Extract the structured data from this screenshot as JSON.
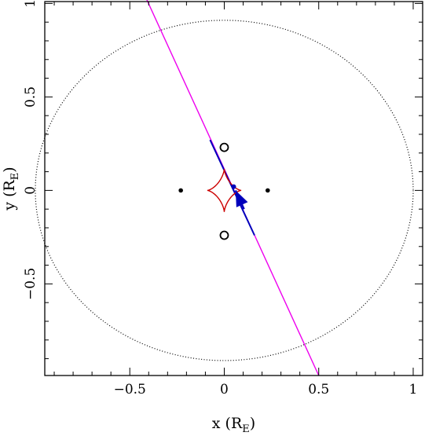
{
  "chart_data": {
    "type": "scatter",
    "title": "",
    "xlabel": {
      "main": "x (R",
      "sub": "E",
      "close": ")"
    },
    "ylabel": {
      "main": "y (R",
      "sub": "E",
      "close": ")"
    },
    "xlim": [
      -0.95,
      1.05
    ],
    "ylim": [
      -0.99,
      1.01
    ],
    "x_ticks": [
      {
        "value": -0.5,
        "label": "−0.5"
      },
      {
        "value": 0,
        "label": "0"
      },
      {
        "value": 0.5,
        "label": "0.5"
      },
      {
        "value": 1,
        "label": "1"
      }
    ],
    "y_ticks": [
      {
        "value": -0.5,
        "label": "−0.5"
      },
      {
        "value": 0,
        "label": "0"
      },
      {
        "value": 0.5,
        "label": "0.5"
      },
      {
        "value": 1,
        "label": "1"
      }
    ],
    "x_minor_step": 0.1,
    "y_minor_step": 0.1,
    "einstein_ring": {
      "cx": 0,
      "cy": 0,
      "rx": 1.0,
      "ry": 0.91,
      "color": "#000000",
      "style": "dotted"
    },
    "trajectory": {
      "x1": -0.41,
      "y1": 1.02,
      "x2": 0.5,
      "y2": -0.99,
      "color": "#ee00ee"
    },
    "trajectory_highlight": {
      "x1": -0.075,
      "y1": 0.27,
      "x2": 0.16,
      "y2": -0.24,
      "color": "#0000bb"
    },
    "source_point": {
      "x": 0.05,
      "y": 0.02,
      "color": "#0000bb"
    },
    "direction_arrow": {
      "x1": 0.105,
      "y1": -0.1,
      "x2": 0.06,
      "y2": 0.0,
      "color": "#0000bb"
    },
    "lens_masses": [
      {
        "x": -0.23,
        "y": 0.0
      },
      {
        "x": 0.23,
        "y": 0.0
      }
    ],
    "images": [
      {
        "x": 0.0,
        "y": 0.23
      },
      {
        "x": 0.0,
        "y": -0.24
      }
    ],
    "caustic": {
      "center": [
        0.0,
        0.0
      ],
      "half_width": 0.09,
      "half_height": 0.115,
      "color": "#cc0000"
    }
  }
}
